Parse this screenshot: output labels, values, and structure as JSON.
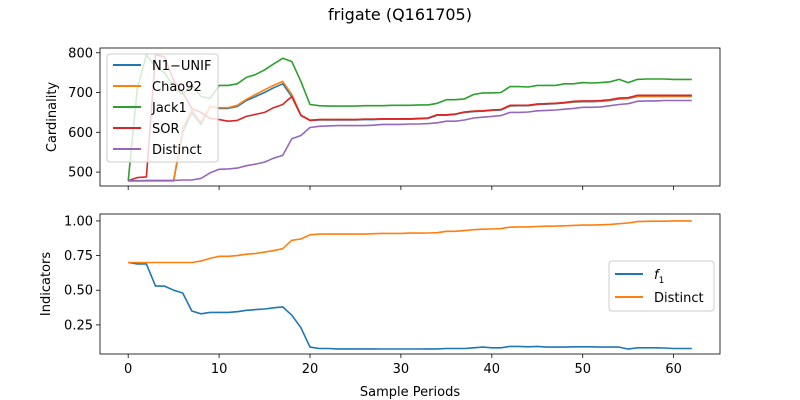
{
  "figure": {
    "suptitle": "frigate (Q161705)"
  },
  "colors": {
    "blue": "#1f77b4",
    "orange": "#ff7f0e",
    "green": "#2ca02c",
    "red": "#d62728",
    "purple": "#9467bd"
  },
  "chart_data": [
    {
      "type": "line",
      "title": "",
      "xlabel": "",
      "ylabel": "Cardinality",
      "xlim": [
        -3.1,
        65.1
      ],
      "ylim": [
        465,
        812
      ],
      "xticks": [
        0,
        10,
        20,
        30,
        40,
        50,
        60
      ],
      "xtick_labels": [
        "",
        "",
        "",
        "",
        "",
        "",
        ""
      ],
      "yticks": [
        500,
        600,
        700,
        800
      ],
      "ytick_labels": [
        "500",
        "600",
        "700",
        "800"
      ],
      "grid": false,
      "legend": "upper left",
      "series": [
        {
          "name": "N1−UNIF",
          "color": "#1f77b4",
          "x": [
            0,
            1,
            2,
            3,
            4,
            5,
            6,
            7,
            8,
            9,
            10,
            11,
            12,
            13,
            14,
            15,
            16,
            17,
            18,
            19,
            20,
            21,
            22,
            23,
            24,
            25,
            26,
            27,
            28,
            29,
            30,
            31,
            32,
            33,
            34,
            35,
            36,
            37,
            38,
            39,
            40,
            41,
            42,
            43,
            44,
            45,
            46,
            47,
            48,
            49,
            50,
            51,
            52,
            53,
            54,
            55,
            56,
            57,
            58,
            59,
            60,
            61,
            62
          ],
          "y": [
            478,
            478,
            478,
            478,
            478,
            478,
            600,
            650,
            620,
            665,
            660,
            660,
            665,
            680,
            690,
            700,
            712,
            722,
            690,
            642,
            630,
            631,
            631,
            631,
            631,
            631,
            632,
            632,
            633,
            633,
            633,
            633,
            634,
            635,
            643,
            643,
            645,
            650,
            652,
            653,
            655,
            656,
            666,
            667,
            667,
            670,
            671,
            672,
            674,
            676,
            677,
            677,
            678,
            680,
            684,
            685,
            690,
            690,
            690,
            690,
            690,
            690,
            690
          ]
        },
        {
          "name": "Chao92",
          "color": "#ff7f0e",
          "x": [
            0,
            1,
            2,
            3,
            4,
            5,
            6,
            7,
            8,
            9,
            10,
            11,
            12,
            13,
            14,
            15,
            16,
            17,
            18,
            19,
            20,
            21,
            22,
            23,
            24,
            25,
            26,
            27,
            28,
            29,
            30,
            31,
            32,
            33,
            34,
            35,
            36,
            37,
            38,
            39,
            40,
            41,
            42,
            43,
            44,
            45,
            46,
            47,
            48,
            49,
            50,
            51,
            52,
            53,
            54,
            55,
            56,
            57,
            58,
            59,
            60,
            61,
            62
          ],
          "y": [
            478,
            478,
            478,
            478,
            478,
            478,
            610,
            655,
            625,
            665,
            662,
            662,
            668,
            683,
            695,
            707,
            718,
            728,
            695,
            643,
            631,
            632,
            632,
            632,
            632,
            632,
            633,
            633,
            634,
            634,
            634,
            634,
            635,
            636,
            644,
            644,
            646,
            651,
            653,
            654,
            656,
            657,
            667,
            668,
            668,
            671,
            672,
            673,
            675,
            677,
            678,
            678,
            679,
            681,
            685,
            686,
            691,
            691,
            691,
            691,
            691,
            691,
            691
          ]
        },
        {
          "name": "Jack1",
          "color": "#2ca02c",
          "x": [
            0,
            1,
            2,
            3,
            4,
            5,
            6,
            7,
            8,
            9,
            10,
            11,
            12,
            13,
            14,
            15,
            16,
            17,
            18,
            19,
            20,
            21,
            22,
            23,
            24,
            25,
            26,
            27,
            28,
            29,
            30,
            31,
            32,
            33,
            34,
            35,
            36,
            37,
            38,
            39,
            40,
            41,
            42,
            43,
            44,
            45,
            46,
            47,
            48,
            49,
            50,
            51,
            52,
            53,
            54,
            55,
            56,
            57,
            58,
            59,
            60,
            61,
            62
          ],
          "y": [
            478,
            710,
            795,
            765,
            750,
            715,
            695,
            720,
            690,
            685,
            718,
            718,
            722,
            738,
            745,
            757,
            772,
            786,
            778,
            728,
            670,
            667,
            666,
            666,
            666,
            666,
            667,
            667,
            667,
            668,
            668,
            668,
            669,
            669,
            673,
            682,
            682,
            684,
            695,
            699,
            699,
            700,
            715,
            715,
            714,
            718,
            718,
            718,
            722,
            722,
            725,
            724,
            725,
            727,
            733,
            725,
            733,
            734,
            734,
            734,
            733,
            733,
            733
          ]
        },
        {
          "name": "SOR",
          "color": "#d62728",
          "x": [
            0,
            1,
            2,
            3,
            4,
            5,
            6,
            7,
            8,
            9,
            10,
            11,
            12,
            13,
            14,
            15,
            16,
            17,
            18,
            19,
            20,
            21,
            22,
            23,
            24,
            25,
            26,
            27,
            28,
            29,
            30,
            31,
            32,
            33,
            34,
            35,
            36,
            37,
            38,
            39,
            40,
            41,
            42,
            43,
            44,
            45,
            46,
            47,
            48,
            49,
            50,
            51,
            52,
            53,
            54,
            55,
            56,
            57,
            58,
            59,
            60,
            61,
            62
          ],
          "y": [
            478,
            486,
            488,
            795,
            790,
            730,
            700,
            660,
            650,
            635,
            632,
            628,
            630,
            640,
            645,
            650,
            662,
            670,
            690,
            643,
            630,
            632,
            632,
            632,
            632,
            632,
            633,
            633,
            634,
            634,
            634,
            634,
            635,
            636,
            644,
            644,
            646,
            651,
            653,
            654,
            656,
            657,
            668,
            668,
            668,
            671,
            672,
            673,
            675,
            678,
            679,
            679,
            680,
            682,
            686,
            687,
            693,
            693,
            693,
            693,
            693,
            693,
            693
          ]
        },
        {
          "name": "Distinct",
          "color": "#9467bd",
          "x": [
            0,
            1,
            2,
            3,
            4,
            5,
            6,
            7,
            8,
            9,
            10,
            11,
            12,
            13,
            14,
            15,
            16,
            17,
            18,
            19,
            20,
            21,
            22,
            23,
            24,
            25,
            26,
            27,
            28,
            29,
            30,
            31,
            32,
            33,
            34,
            35,
            36,
            37,
            38,
            39,
            40,
            41,
            42,
            43,
            44,
            45,
            46,
            47,
            48,
            49,
            50,
            51,
            52,
            53,
            54,
            55,
            56,
            57,
            58,
            59,
            60,
            61,
            62
          ],
          "y": [
            478,
            478,
            479,
            479,
            479,
            479,
            480,
            480,
            484,
            498,
            507,
            508,
            510,
            516,
            520,
            525,
            535,
            542,
            584,
            592,
            612,
            615,
            616,
            617,
            617,
            617,
            617,
            618,
            620,
            620,
            620,
            621,
            621,
            622,
            624,
            628,
            628,
            631,
            636,
            638,
            640,
            642,
            650,
            650,
            651,
            654,
            655,
            656,
            658,
            660,
            663,
            663,
            664,
            667,
            670,
            672,
            678,
            679,
            679,
            680,
            680,
            680,
            680
          ]
        }
      ]
    },
    {
      "type": "line",
      "title": "",
      "xlabel": "Sample Periods",
      "ylabel": "Indicators",
      "xlim": [
        -3.1,
        65.1
      ],
      "ylim": [
        0.04,
        1.05
      ],
      "xticks": [
        0,
        10,
        20,
        30,
        40,
        50,
        60
      ],
      "xtick_labels": [
        "0",
        "10",
        "20",
        "30",
        "40",
        "50",
        "60"
      ],
      "yticks": [
        0.25,
        0.5,
        0.75,
        1.0
      ],
      "ytick_labels": [
        "0.25",
        "0.50",
        "0.75",
        "1.00"
      ],
      "grid": false,
      "legend": "center right",
      "series": [
        {
          "name": "f1",
          "color": "#1f77b4",
          "x": [
            0,
            1,
            2,
            3,
            4,
            5,
            6,
            7,
            8,
            9,
            10,
            11,
            12,
            13,
            14,
            15,
            16,
            17,
            18,
            19,
            20,
            21,
            22,
            23,
            24,
            25,
            26,
            27,
            28,
            29,
            30,
            31,
            32,
            33,
            34,
            35,
            36,
            37,
            38,
            39,
            40,
            41,
            42,
            43,
            44,
            45,
            46,
            47,
            48,
            49,
            50,
            51,
            52,
            53,
            54,
            55,
            56,
            57,
            58,
            59,
            60,
            61,
            62
          ],
          "y": [
            0.7,
            0.69,
            0.69,
            0.53,
            0.53,
            0.5,
            0.48,
            0.35,
            0.33,
            0.34,
            0.34,
            0.34,
            0.345,
            0.355,
            0.36,
            0.365,
            0.373,
            0.38,
            0.32,
            0.23,
            0.09,
            0.08,
            0.08,
            0.077,
            0.077,
            0.077,
            0.077,
            0.077,
            0.076,
            0.076,
            0.076,
            0.076,
            0.076,
            0.077,
            0.077,
            0.08,
            0.08,
            0.08,
            0.085,
            0.09,
            0.085,
            0.085,
            0.095,
            0.095,
            0.092,
            0.095,
            0.09,
            0.09,
            0.09,
            0.092,
            0.092,
            0.092,
            0.09,
            0.09,
            0.09,
            0.075,
            0.085,
            0.085,
            0.085,
            0.083,
            0.08,
            0.08,
            0.08
          ]
        },
        {
          "name": "Distinct",
          "color": "#ff7f0e",
          "x": [
            0,
            1,
            2,
            3,
            4,
            5,
            6,
            7,
            8,
            9,
            10,
            11,
            12,
            13,
            14,
            15,
            16,
            17,
            18,
            19,
            20,
            21,
            22,
            23,
            24,
            25,
            26,
            27,
            28,
            29,
            30,
            31,
            32,
            33,
            34,
            35,
            36,
            37,
            38,
            39,
            40,
            41,
            42,
            43,
            44,
            45,
            46,
            47,
            48,
            49,
            50,
            51,
            52,
            53,
            54,
            55,
            56,
            57,
            58,
            59,
            60,
            61,
            62
          ],
          "y": [
            0.7,
            0.7,
            0.7,
            0.7,
            0.7,
            0.7,
            0.7,
            0.7,
            0.71,
            0.73,
            0.745,
            0.745,
            0.75,
            0.76,
            0.765,
            0.775,
            0.785,
            0.8,
            0.86,
            0.87,
            0.9,
            0.905,
            0.905,
            0.905,
            0.905,
            0.905,
            0.905,
            0.908,
            0.91,
            0.91,
            0.91,
            0.912,
            0.912,
            0.913,
            0.915,
            0.925,
            0.925,
            0.93,
            0.937,
            0.94,
            0.942,
            0.945,
            0.955,
            0.957,
            0.957,
            0.96,
            0.962,
            0.963,
            0.965,
            0.968,
            0.97,
            0.97,
            0.972,
            0.975,
            0.98,
            0.985,
            0.995,
            0.997,
            0.998,
            0.998,
            1.0,
            1.0,
            1.0
          ]
        }
      ]
    }
  ]
}
